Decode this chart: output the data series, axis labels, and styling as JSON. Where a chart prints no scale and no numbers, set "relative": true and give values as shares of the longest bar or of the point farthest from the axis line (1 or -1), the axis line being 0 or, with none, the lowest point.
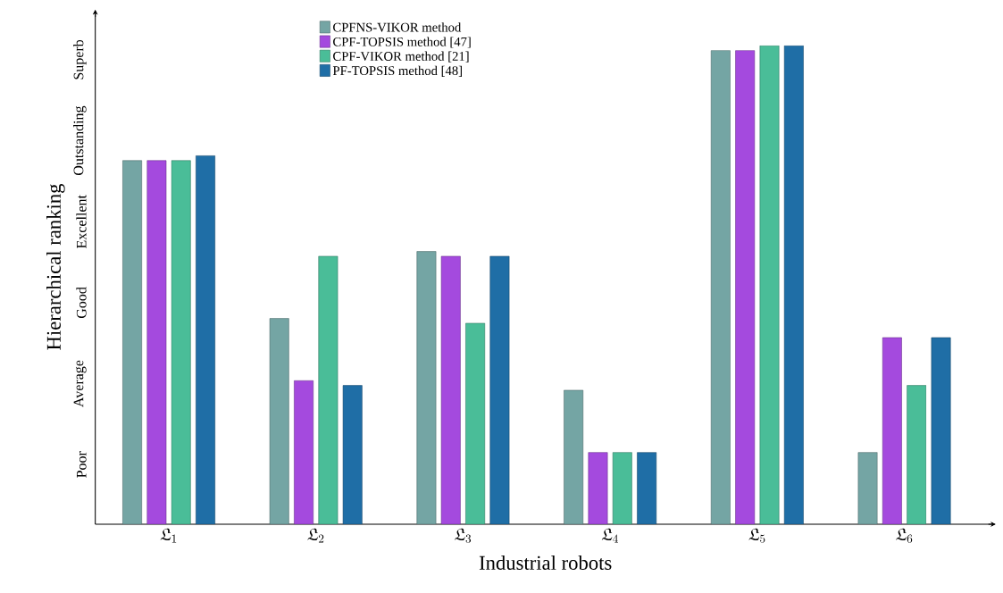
{
  "chart_data": {
    "type": "bar",
    "xlabel": "Industrial robots",
    "ylabel": "Hierarchical ranking",
    "categories": [
      "\\mathfrak{L}_{1}",
      "\\mathfrak{L}_{2}",
      "\\mathfrak{L}_{3}",
      "\\mathfrak{L}_{4}",
      "\\mathfrak{L}_{5}",
      "\\mathfrak{L}_{6}"
    ],
    "relative": true,
    "series": [
      {
        "name": "CPFNS-VIKOR method",
        "color": "#74a5a4",
        "values": [
          0.76,
          0.43,
          0.57,
          0.28,
          0.99,
          0.15
        ]
      },
      {
        "name": "CPF-TOPSIS method [47]",
        "color": "#a44ade",
        "values": [
          0.76,
          0.3,
          0.56,
          0.15,
          0.99,
          0.39
        ]
      },
      {
        "name": "CPF-VIKOR method [21]",
        "color": "#4abd98",
        "values": [
          0.76,
          0.56,
          0.42,
          0.15,
          1,
          0.29
        ]
      },
      {
        "name": "PF-TOPSIS method [48]",
        "color": "#1f6ea6",
        "values": [
          0.77,
          0.29,
          0.56,
          0.15,
          1,
          0.39
        ]
      }
    ],
    "annotations": [
      "Poor",
      "Average",
      "Good",
      "Excellent",
      "Outstanding",
      "Superb"
    ],
    "legend": "top"
  }
}
